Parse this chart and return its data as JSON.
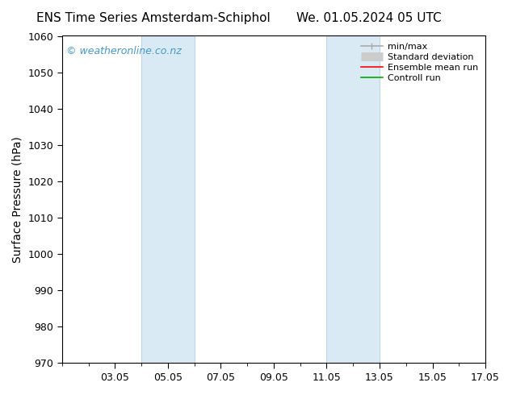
{
  "title_left": "ENS Time Series Amsterdam-Schiphol",
  "title_right": "We. 01.05.2024 05 UTC",
  "ylabel": "Surface Pressure (hPa)",
  "ylim": [
    970,
    1060
  ],
  "yticks": [
    970,
    980,
    990,
    1000,
    1010,
    1020,
    1030,
    1040,
    1050,
    1060
  ],
  "xlim": [
    0,
    16
  ],
  "xtick_labels": [
    "03.05",
    "05.05",
    "07.05",
    "09.05",
    "11.05",
    "13.05",
    "15.05",
    "17.05"
  ],
  "xtick_positions": [
    2,
    4,
    6,
    8,
    10,
    12,
    14,
    16
  ],
  "watermark": "© weatheronline.co.nz",
  "watermark_color": "#4499cc",
  "background_color": "#ffffff",
  "plot_bg_color": "#ffffff",
  "shaded_regions": [
    {
      "x_start": 3.0,
      "x_end": 5.0,
      "color": "#daeaf5"
    },
    {
      "x_start": 10.0,
      "x_end": 12.0,
      "color": "#daeaf5"
    }
  ],
  "shade_border_color": "#b8d4e8",
  "legend_entries": [
    {
      "label": "min/max",
      "color": "#aaaaaa",
      "lw": 1.2
    },
    {
      "label": "Standard deviation",
      "color": "#cccccc",
      "lw": 8
    },
    {
      "label": "Ensemble mean run",
      "color": "#ff0000",
      "lw": 1.2
    },
    {
      "label": "Controll run",
      "color": "#00aa00",
      "lw": 1.2
    }
  ],
  "title_fontsize": 11,
  "tick_fontsize": 9,
  "ylabel_fontsize": 10,
  "legend_fontsize": 8,
  "watermark_fontsize": 9
}
